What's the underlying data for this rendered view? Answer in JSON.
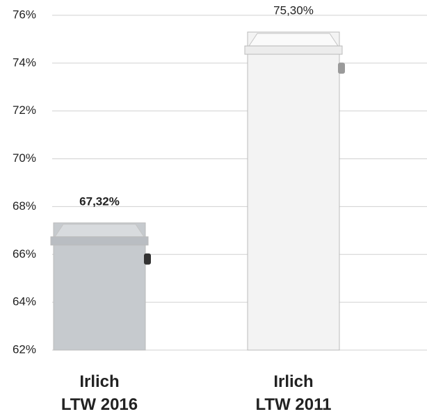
{
  "chart_data": {
    "type": "bar",
    "categories": [
      "Irlich\nLTW 2016",
      "Irlich\nLTW 2011"
    ],
    "values": [
      67.32,
      75.3
    ],
    "value_labels": [
      "67,32%",
      "75,30%"
    ],
    "colors": [
      "#c6cace",
      "#f3f3f3"
    ],
    "ylim": [
      62,
      76
    ],
    "yticks": [
      {
        "value": 62,
        "label": "62%"
      },
      {
        "value": 64,
        "label": "64%"
      },
      {
        "value": 66,
        "label": "66%"
      },
      {
        "value": 68,
        "label": "68%"
      },
      {
        "value": 70,
        "label": "70%"
      },
      {
        "value": 72,
        "label": "72%"
      },
      {
        "value": 74,
        "label": "74%"
      },
      {
        "value": 76,
        "label": "76%"
      }
    ],
    "grid": true
  }
}
